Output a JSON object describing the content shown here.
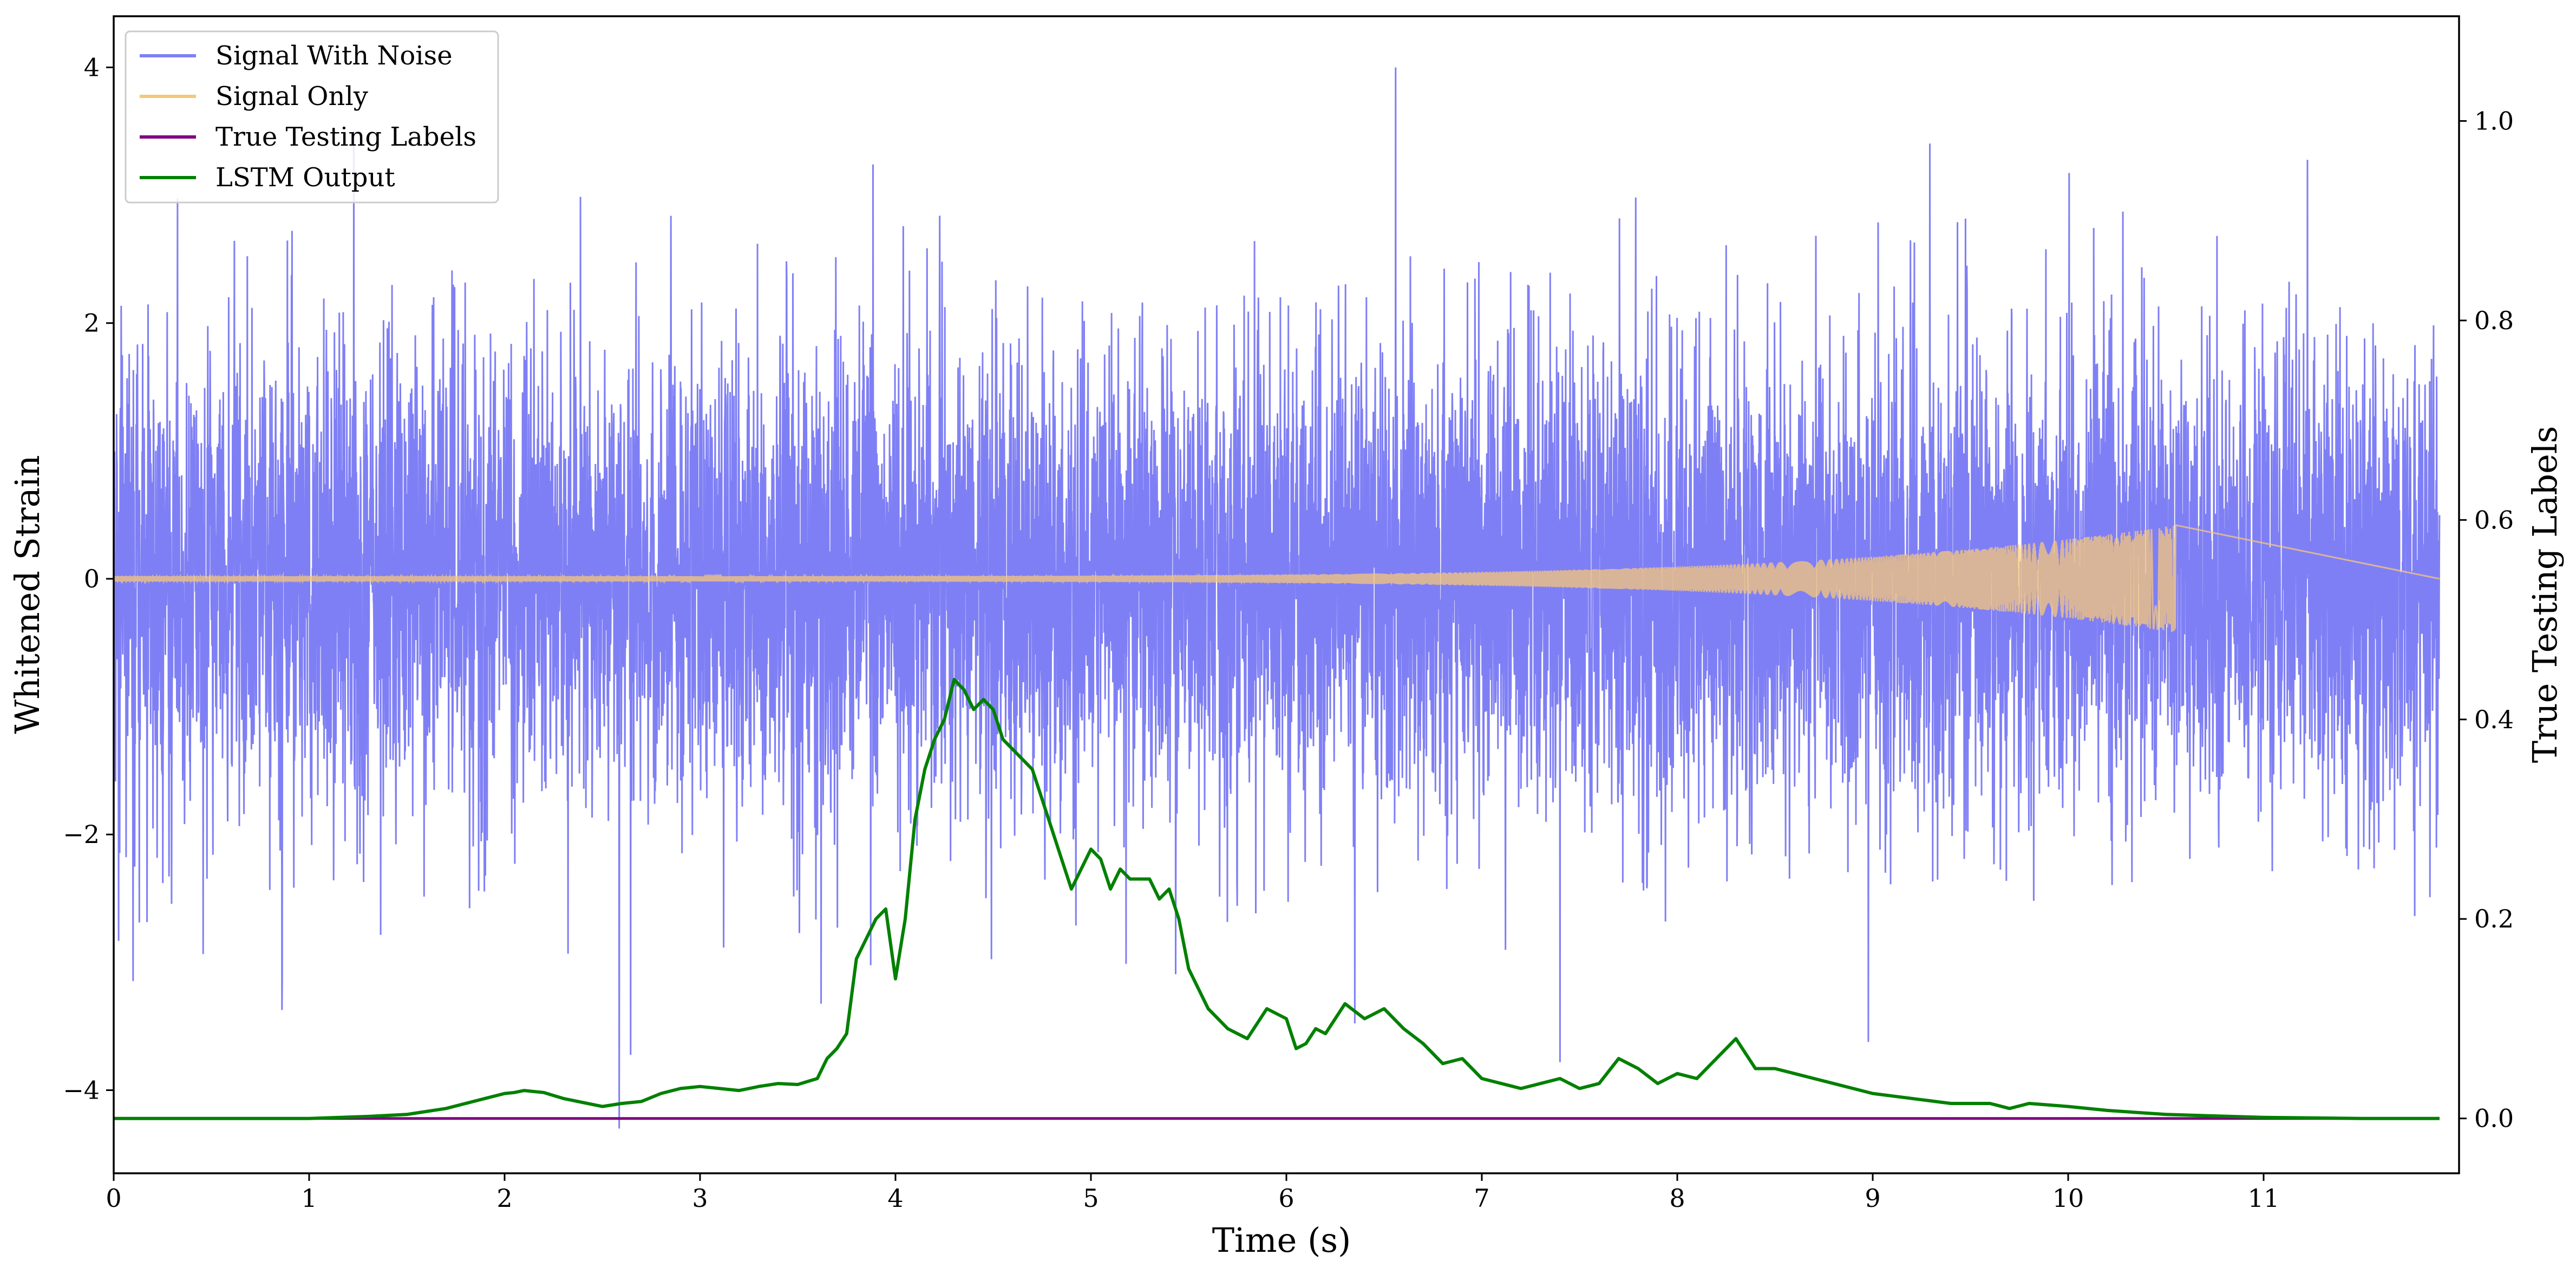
{
  "chart_data": {
    "type": "line",
    "title": "",
    "xlabel": "Time (s)",
    "ylabel": "Whitened Strain",
    "y2label": "True Testing Labels",
    "xlim": [
      0,
      12
    ],
    "ylim": [
      -4.65,
      4.4
    ],
    "y2lim": [
      -0.055,
      1.105
    ],
    "x_ticks": [
      "0",
      "1",
      "2",
      "3",
      "4",
      "5",
      "6",
      "7",
      "8",
      "9",
      "10",
      "11"
    ],
    "y_ticks": [
      {
        "value": -4,
        "label": "−4"
      },
      {
        "value": -2,
        "label": "−2"
      },
      {
        "value": 0,
        "label": "0"
      },
      {
        "value": 2,
        "label": "2"
      },
      {
        "value": 4,
        "label": "4"
      }
    ],
    "y2_ticks": [
      "0.0",
      "0.2",
      "0.4",
      "0.6",
      "0.8",
      "1.0"
    ],
    "grid": false,
    "legend_position": "top-left",
    "series": [
      {
        "name": "Signal With Noise",
        "color": "#7f7ff5",
        "axis": "left",
        "description_stats": {
          "approx_range": [
            -4.3,
            4.0
          ],
          "typical_sd": 0.9
        }
      },
      {
        "name": "Signal Only",
        "color": "#f5c77a",
        "axis": "left",
        "chirp": {
          "start": 0,
          "end": 10.55,
          "amplitude_start": 0.02,
          "amplitude_end": 0.42
        }
      },
      {
        "name": "True Testing Labels",
        "color": "#800080",
        "axis": "right",
        "x": [
          0,
          11.9
        ],
        "y": [
          0.0,
          0.0
        ]
      },
      {
        "name": "LSTM Output",
        "color": "#008000",
        "axis": "right",
        "x": [
          0,
          0.5,
          1.0,
          1.3,
          1.5,
          1.7,
          1.9,
          2.0,
          2.05,
          2.1,
          2.2,
          2.3,
          2.4,
          2.5,
          2.6,
          2.7,
          2.8,
          2.9,
          3.0,
          3.1,
          3.2,
          3.3,
          3.4,
          3.5,
          3.6,
          3.65,
          3.7,
          3.75,
          3.8,
          3.85,
          3.9,
          3.95,
          4.0,
          4.05,
          4.1,
          4.15,
          4.2,
          4.25,
          4.3,
          4.35,
          4.4,
          4.45,
          4.5,
          4.55,
          4.6,
          4.65,
          4.7,
          4.75,
          4.8,
          4.85,
          4.9,
          4.95,
          5.0,
          5.05,
          5.1,
          5.15,
          5.2,
          5.25,
          5.3,
          5.35,
          5.4,
          5.45,
          5.5,
          5.6,
          5.7,
          5.8,
          5.9,
          6.0,
          6.05,
          6.1,
          6.15,
          6.2,
          6.3,
          6.4,
          6.5,
          6.6,
          6.7,
          6.8,
          6.9,
          7.0,
          7.1,
          7.2,
          7.3,
          7.4,
          7.5,
          7.6,
          7.7,
          7.8,
          7.9,
          8.0,
          8.1,
          8.2,
          8.3,
          8.4,
          8.5,
          8.6,
          8.7,
          8.8,
          8.9,
          9.0,
          9.2,
          9.4,
          9.6,
          9.7,
          9.8,
          10.0,
          10.2,
          10.5,
          11.0,
          11.5,
          11.9
        ],
        "y": [
          0.0,
          0.0,
          0.0,
          0.002,
          0.004,
          0.01,
          0.02,
          0.025,
          0.026,
          0.028,
          0.026,
          0.02,
          0.016,
          0.012,
          0.015,
          0.017,
          0.025,
          0.03,
          0.032,
          0.03,
          0.028,
          0.032,
          0.035,
          0.034,
          0.04,
          0.06,
          0.07,
          0.085,
          0.16,
          0.18,
          0.2,
          0.21,
          0.14,
          0.2,
          0.3,
          0.35,
          0.38,
          0.4,
          0.44,
          0.43,
          0.41,
          0.42,
          0.41,
          0.38,
          0.37,
          0.36,
          0.35,
          0.32,
          0.29,
          0.26,
          0.23,
          0.25,
          0.27,
          0.26,
          0.23,
          0.25,
          0.24,
          0.24,
          0.24,
          0.22,
          0.23,
          0.2,
          0.15,
          0.11,
          0.09,
          0.08,
          0.11,
          0.1,
          0.07,
          0.075,
          0.09,
          0.085,
          0.115,
          0.1,
          0.11,
          0.09,
          0.075,
          0.055,
          0.06,
          0.04,
          0.035,
          0.03,
          0.035,
          0.04,
          0.03,
          0.035,
          0.06,
          0.05,
          0.035,
          0.045,
          0.04,
          0.06,
          0.08,
          0.05,
          0.05,
          0.045,
          0.04,
          0.035,
          0.03,
          0.025,
          0.02,
          0.015,
          0.015,
          0.01,
          0.015,
          0.012,
          0.008,
          0.004,
          0.001,
          0.0,
          0.0
        ]
      }
    ]
  }
}
